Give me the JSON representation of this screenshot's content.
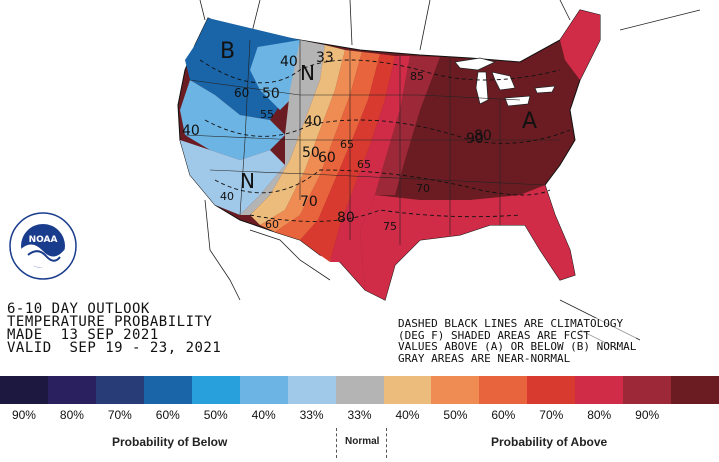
{
  "map": {
    "region_labels": [
      "B",
      "N",
      "N",
      "A"
    ],
    "contour_labels": [
      "33",
      "40",
      "50",
      "40",
      "40",
      "50",
      "60",
      "60",
      "40",
      "60",
      "65",
      "65",
      "70",
      "80",
      "80",
      "75",
      "70",
      "85",
      "90",
      "55"
    ],
    "dark_contour_label": "60"
  },
  "logo": {
    "text": "NOAA",
    "ring_text": "NATIONAL OCEANIC AND ATMOSPHERIC ADMINISTRATION · U.S. DEPARTMENT OF COMMERCE ·"
  },
  "title": {
    "line1": "6-10 DAY OUTLOOK",
    "line2": "TEMPERATURE PROBABILITY",
    "line3": "MADE  13 SEP 2021",
    "line4": "VALID  SEP 19 - 23, 2021"
  },
  "notes": {
    "line1": "DASHED BLACK LINES ARE CLIMATOLOGY",
    "line2": "(DEG F) SHADED AREAS ARE FCST",
    "line3": "VALUES ABOVE (A) OR BELOW (B) NORMAL",
    "line4": "GRAY AREAS ARE NEAR-NORMAL"
  },
  "legend": {
    "colors": [
      "#1c1840",
      "#2a2060",
      "#283c78",
      "#1a64a8",
      "#28a0dc",
      "#6cb4e4",
      "#a0c8e8",
      "#b4b4b4",
      "#ebbc7c",
      "#ee8c54",
      "#e8643c",
      "#d83a30",
      "#d02c48",
      "#9c2838",
      "#6a1c22"
    ],
    "ticks": [
      "90%",
      "80%",
      "70%",
      "60%",
      "50%",
      "40%",
      "33%",
      "33%",
      "40%",
      "50%",
      "60%",
      "70%",
      "80%",
      "90%",
      ""
    ],
    "below_caption": "Probability of Below",
    "normal_caption": "Normal",
    "above_caption": "Probability of Above"
  }
}
